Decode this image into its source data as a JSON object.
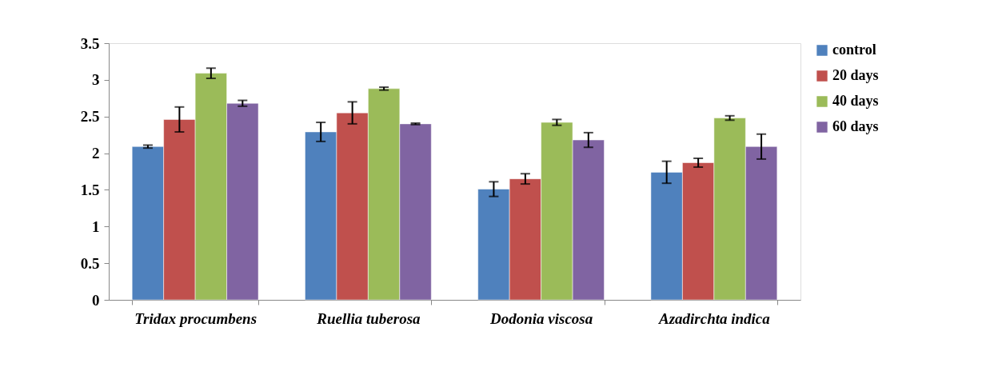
{
  "chart_data": {
    "type": "bar",
    "categories": [
      "Tridax procumbens",
      "Ruellia tuberosa",
      "Dodonia viscosa",
      "Azadirchta indica"
    ],
    "series": [
      {
        "name": "control",
        "color": "#4f81bd",
        "values": [
          2.09,
          2.29,
          1.51,
          1.74
        ],
        "errors": [
          0.02,
          0.13,
          0.1,
          0.15
        ]
      },
      {
        "name": "20 days",
        "color": "#c0504d",
        "values": [
          2.46,
          2.55,
          1.65,
          1.87
        ],
        "errors": [
          0.17,
          0.15,
          0.07,
          0.06
        ]
      },
      {
        "name": "40 days",
        "color": "#9bbb59",
        "values": [
          3.09,
          2.88,
          2.42,
          2.48
        ],
        "errors": [
          0.07,
          0.02,
          0.04,
          0.03
        ]
      },
      {
        "name": "60 days",
        "color": "#8064a2",
        "values": [
          2.68,
          2.4,
          2.18,
          2.09
        ],
        "errors": [
          0.04,
          0.01,
          0.1,
          0.17
        ]
      }
    ],
    "ylim": [
      0,
      3.5
    ],
    "yticks": [
      0,
      0.5,
      1,
      1.5,
      2,
      2.5,
      3,
      3.5
    ],
    "grid": false,
    "legend": "right"
  }
}
